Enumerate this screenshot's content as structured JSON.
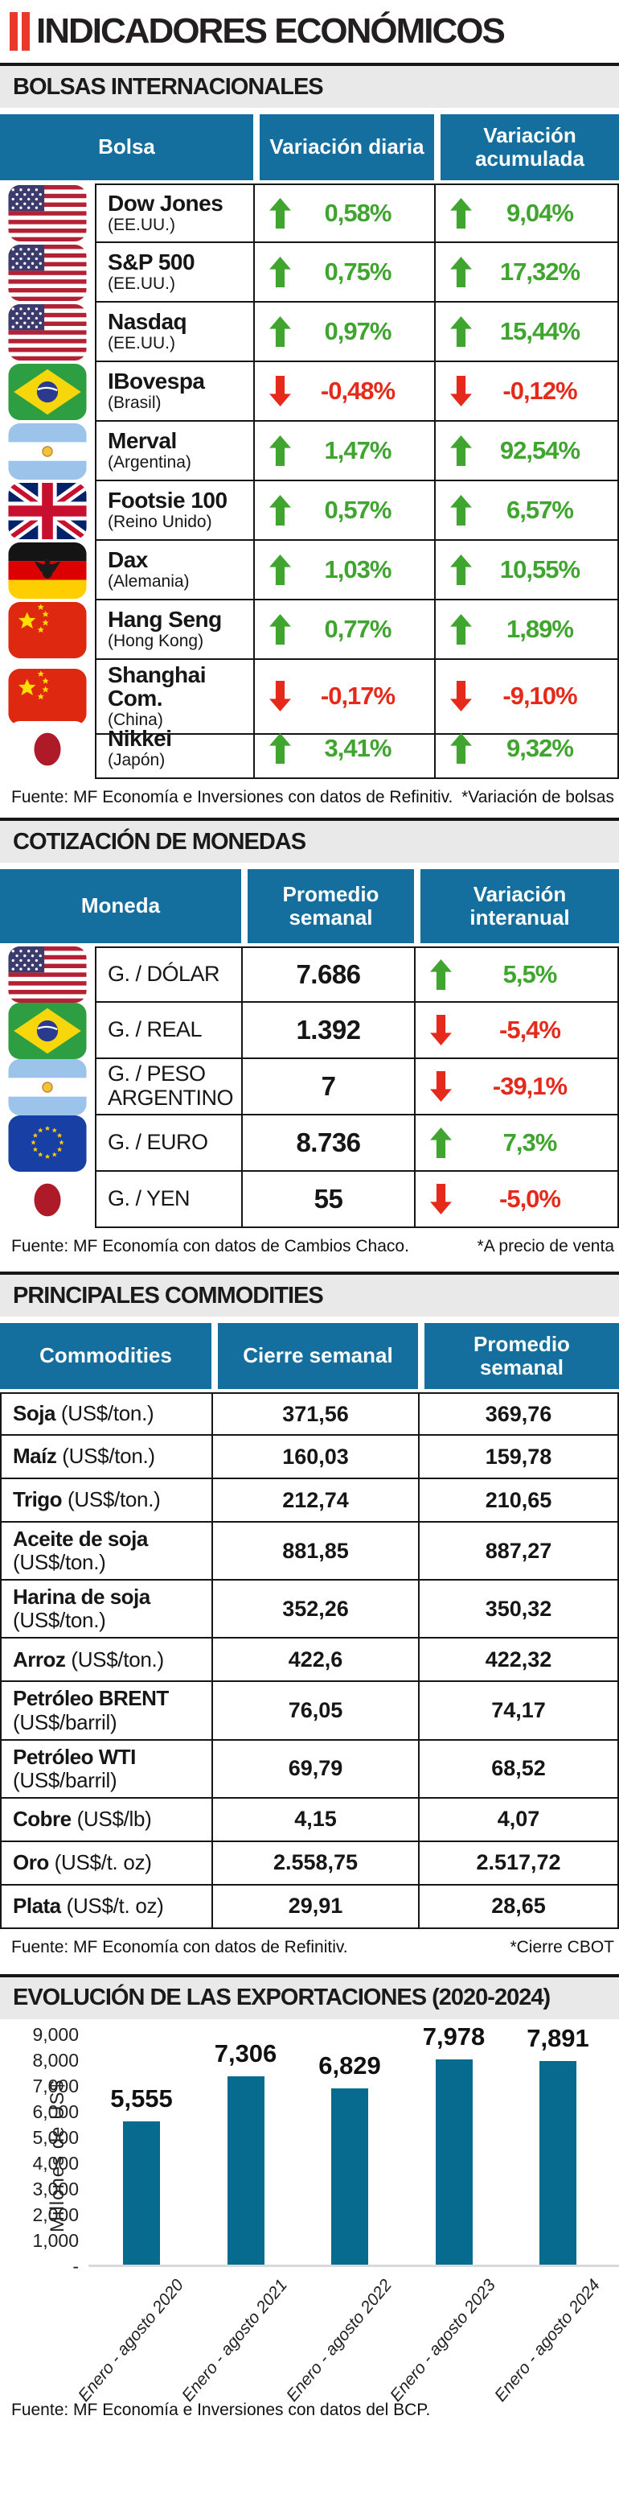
{
  "page_title": "INDICADORES ECONÓMICOS",
  "colors": {
    "accent_red": "#E8392B",
    "header_blue": "#146F9E",
    "positive_green": "#3FA52F",
    "negative_red": "#E52A1C",
    "bar_teal": "#076B90",
    "band_gray": "#E9E9E9"
  },
  "icons": {
    "up_arrow": "arrow-up-icon",
    "down_arrow": "arrow-down-icon",
    "flags": [
      "us",
      "br",
      "ar",
      "uk",
      "de",
      "cn",
      "jp",
      "eu"
    ]
  },
  "chart_data": [
    {
      "type": "table",
      "section_title": "BOLSAS INTERNACIONALES",
      "columns": [
        "Bolsa",
        "Variación diaria",
        "Variación acumulada"
      ],
      "rows": [
        {
          "flag": "us",
          "name": "Dow Jones",
          "sub": "(EE.UU.)",
          "daily": "0,58%",
          "daily_dir": "up",
          "accum": "9,04%",
          "accum_dir": "up"
        },
        {
          "flag": "us",
          "name": "S&P 500",
          "sub": "(EE.UU.)",
          "daily": "0,75%",
          "daily_dir": "up",
          "accum": "17,32%",
          "accum_dir": "up"
        },
        {
          "flag": "us",
          "name": "Nasdaq",
          "sub": "(EE.UU.)",
          "daily": "0,97%",
          "daily_dir": "up",
          "accum": "15,44%",
          "accum_dir": "up"
        },
        {
          "flag": "br",
          "name": "IBovespa",
          "sub": "(Brasil)",
          "daily": "-0,48%",
          "daily_dir": "down",
          "accum": "-0,12%",
          "accum_dir": "down"
        },
        {
          "flag": "ar",
          "name": "Merval",
          "sub": "(Argentina)",
          "daily": "1,47%",
          "daily_dir": "up",
          "accum": "92,54%",
          "accum_dir": "up"
        },
        {
          "flag": "uk",
          "name": "Footsie 100",
          "sub": "(Reino Unido)",
          "daily": "0,57%",
          "daily_dir": "up",
          "accum": "6,57%",
          "accum_dir": "up"
        },
        {
          "flag": "de",
          "name": "Dax",
          "sub": "(Alemania)",
          "daily": "1,03%",
          "daily_dir": "up",
          "accum": "10,55%",
          "accum_dir": "up"
        },
        {
          "flag": "cn",
          "name": "Hang Seng",
          "sub": "(Hong Kong)",
          "daily": "0,77%",
          "daily_dir": "up",
          "accum": "1,89%",
          "accum_dir": "up"
        },
        {
          "flag": "cn",
          "name": "Shanghai Com.",
          "sub": "(China)",
          "daily": "-0,17%",
          "daily_dir": "down",
          "accum": "-9,10%",
          "accum_dir": "down"
        },
        {
          "flag": "jp",
          "name": "Nikkei",
          "sub": "(Japón)",
          "daily": "3,41%",
          "daily_dir": "up",
          "accum": "9,32%",
          "accum_dir": "up"
        }
      ],
      "source": "Fuente: MF Economía e Inversiones con datos de Refinitiv.",
      "note": "*Variación de bolsas"
    },
    {
      "type": "table",
      "section_title": "COTIZACIÓN DE MONEDAS",
      "columns": [
        "Moneda",
        "Promedio semanal",
        "Variación interanual"
      ],
      "rows": [
        {
          "flag": "us",
          "name": "G. / DÓLAR",
          "value": "7.686",
          "var": "5,5%",
          "var_dir": "up"
        },
        {
          "flag": "br",
          "name": "G. / REAL",
          "value": "1.392",
          "var": "-5,4%",
          "var_dir": "down"
        },
        {
          "flag": "ar",
          "name": "G. / PESO ARGENTINO",
          "value": "7",
          "var": "-39,1%",
          "var_dir": "down"
        },
        {
          "flag": "eu",
          "name": "G. / EURO",
          "value": "8.736",
          "var": "7,3%",
          "var_dir": "up"
        },
        {
          "flag": "jp",
          "name": "G. / YEN",
          "value": "55",
          "var": "-5,0%",
          "var_dir": "down"
        }
      ],
      "source": "Fuente: MF Economía con datos de Cambios Chaco.",
      "note": "*A precio de venta"
    },
    {
      "type": "table",
      "section_title": "PRINCIPALES COMMODITIES",
      "columns": [
        "Commodities",
        "Cierre semanal",
        "Promedio semanal"
      ],
      "rows": [
        {
          "name": "Soja",
          "unit": "(US$/ton.)",
          "close": "371,56",
          "avg": "369,76"
        },
        {
          "name": "Maíz",
          "unit": "(US$/ton.)",
          "close": "160,03",
          "avg": "159,78"
        },
        {
          "name": "Trigo",
          "unit": "(US$/ton.)",
          "close": "212,74",
          "avg": "210,65"
        },
        {
          "name": "Aceite de soja",
          "unit": "(US$/ton.)",
          "close": "881,85",
          "avg": "887,27"
        },
        {
          "name": "Harina de soja",
          "unit": "(US$/ton.)",
          "close": "352,26",
          "avg": "350,32"
        },
        {
          "name": "Arroz",
          "unit": "(US$/ton.)",
          "close": "422,6",
          "avg": "422,32"
        },
        {
          "name": "Petróleo BRENT",
          "unit": "(US$/barril)",
          "close": "76,05",
          "avg": "74,17"
        },
        {
          "name": "Petróleo WTI",
          "unit": "(US$/barril)",
          "close": "69,79",
          "avg": "68,52"
        },
        {
          "name": "Cobre",
          "unit": "(US$/lb)",
          "close": "4,15",
          "avg": "4,07"
        },
        {
          "name": "Oro",
          "unit": "(US$/t. oz)",
          "close": "2.558,75",
          "avg": "2.517,72"
        },
        {
          "name": "Plata",
          "unit": "(US$/t. oz)",
          "close": "29,91",
          "avg": "28,65"
        }
      ],
      "source": "Fuente: MF Economía con datos de Refinitiv.",
      "note": "*Cierre CBOT"
    },
    {
      "type": "bar",
      "section_title": "EVOLUCIÓN DE LAS EXPORTACIONES (2020-2024)",
      "title": "EVOLUCIÓN DE LAS EXPORTACIONES (2020-2024)",
      "categories": [
        "Enero - agosto 2020",
        "Enero - agosto 2021",
        "Enero - agosto 2022",
        "Enero - agosto 2023",
        "Enero - agosto 2024"
      ],
      "values": [
        5555,
        7306,
        6829,
        7978,
        7891
      ],
      "value_labels": [
        "5,555",
        "7,306",
        "6,829",
        "7,978",
        "7,891"
      ],
      "xlabel": "",
      "ylabel": "Millones de US$",
      "ylim": [
        0,
        9000
      ],
      "grid": false,
      "legend": "none",
      "bar_color": "#076B90",
      "yticks": [
        {
          "v": 9000,
          "label": "9,000"
        },
        {
          "v": 8000,
          "label": "8,000"
        },
        {
          "v": 7000,
          "label": "7,000"
        },
        {
          "v": 6000,
          "label": "6,000"
        },
        {
          "v": 5000,
          "label": "5,000"
        },
        {
          "v": 4000,
          "label": "4,000"
        },
        {
          "v": 3000,
          "label": "3,000"
        },
        {
          "v": 2000,
          "label": "2,000"
        },
        {
          "v": 1000,
          "label": "1,000"
        },
        {
          "v": 0,
          "label": "-"
        }
      ],
      "source": "Fuente: MF Economía e Inversiones con datos del BCP."
    }
  ]
}
